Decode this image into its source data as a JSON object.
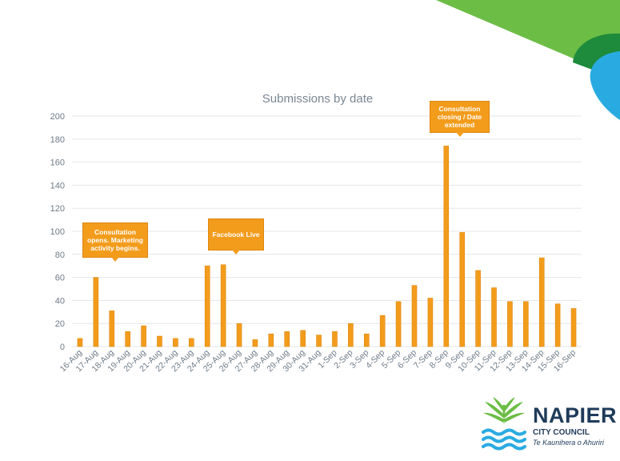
{
  "chart_data": {
    "type": "bar",
    "title": "Submissions by date",
    "xlabel": "",
    "ylabel": "",
    "ylim": [
      0,
      200
    ],
    "yticks": [
      0,
      20,
      40,
      60,
      80,
      100,
      120,
      140,
      160,
      180,
      200
    ],
    "grid": true,
    "categories": [
      "16-Aug",
      "17-Aug",
      "18-Aug",
      "19-Aug",
      "20-Aug",
      "21-Aug",
      "22-Aug",
      "23-Aug",
      "24-Aug",
      "25-Aug",
      "26-Aug",
      "27-Aug",
      "28-Aug",
      "29-Aug",
      "30-Aug",
      "31-Aug",
      "1-Sep",
      "2-Sep",
      "3-Sep",
      "4-Sep",
      "5-Sep",
      "6-Sep",
      "7-Sep",
      "8-Sep",
      "9-Sep",
      "10-Sep",
      "11-Sep",
      "12-Sep",
      "13-Sep",
      "14-Sep",
      "15-Sep",
      "16-Sep"
    ],
    "values": [
      7,
      60,
      31,
      13,
      18,
      9,
      7,
      7,
      70,
      71,
      20,
      6,
      11,
      13,
      14,
      10,
      13,
      20,
      11,
      27,
      39,
      53,
      42,
      174,
      99,
      66,
      51,
      39,
      39,
      77,
      37,
      33
    ],
    "bar_color": "#f39c1c",
    "annotations": [
      {
        "category": "17-Aug",
        "text": "Consultation opens. Marketing activity begins."
      },
      {
        "category": "24-Aug",
        "text": "Facebook Live"
      },
      {
        "category": "8-Sep",
        "text": "Consultation closing / Date extended"
      }
    ]
  },
  "logo": {
    "name": "NAPIER",
    "subtitle": "CITY COUNCIL",
    "tagline": "Te Kaunihera o Ahuriri"
  },
  "colors": {
    "green": "#6cbd45",
    "dark_green": "#1e8a3c",
    "cyan": "#29abe2",
    "navy": "#1f3b5a"
  }
}
